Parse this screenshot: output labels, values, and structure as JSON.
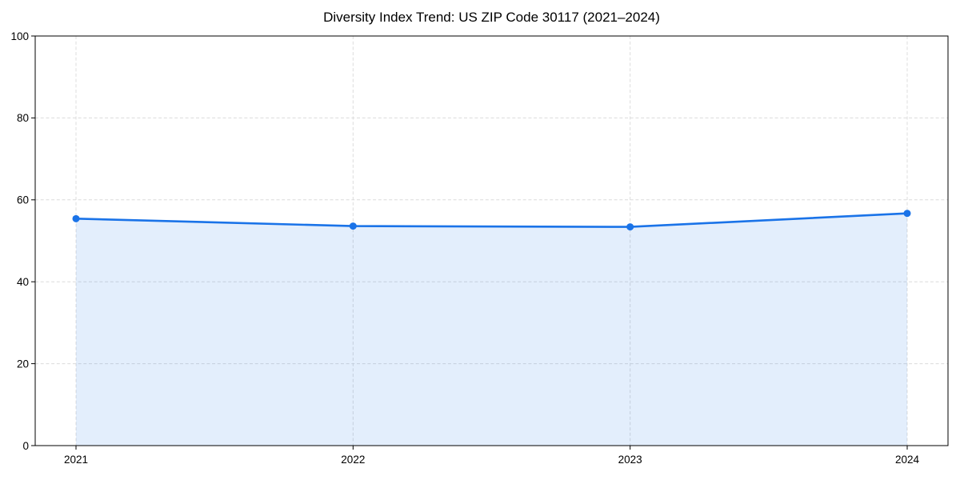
{
  "chart_data": {
    "type": "line",
    "title": "Diversity Index Trend: US ZIP Code 30117 (2021–2024)",
    "categories": [
      "2021",
      "2022",
      "2023",
      "2024"
    ],
    "series": [
      {
        "name": "Diversity Index",
        "values": [
          55.4,
          53.6,
          53.4,
          56.7
        ]
      }
    ],
    "xlabel": "",
    "ylabel": "",
    "ylim": [
      0,
      100
    ],
    "yticks": [
      0,
      20,
      40,
      60,
      80,
      100
    ],
    "grid": true,
    "grid_style": "dashed",
    "legend_position": "none",
    "area_fill": true,
    "marker": "circle",
    "colors": {
      "line": "#1a73e8",
      "marker": "#1a73e8",
      "fill": "#1a73e8",
      "fill_opacity": 0.12,
      "grid": "#dcdcdc",
      "axis": "#000000",
      "background": "#ffffff"
    }
  }
}
